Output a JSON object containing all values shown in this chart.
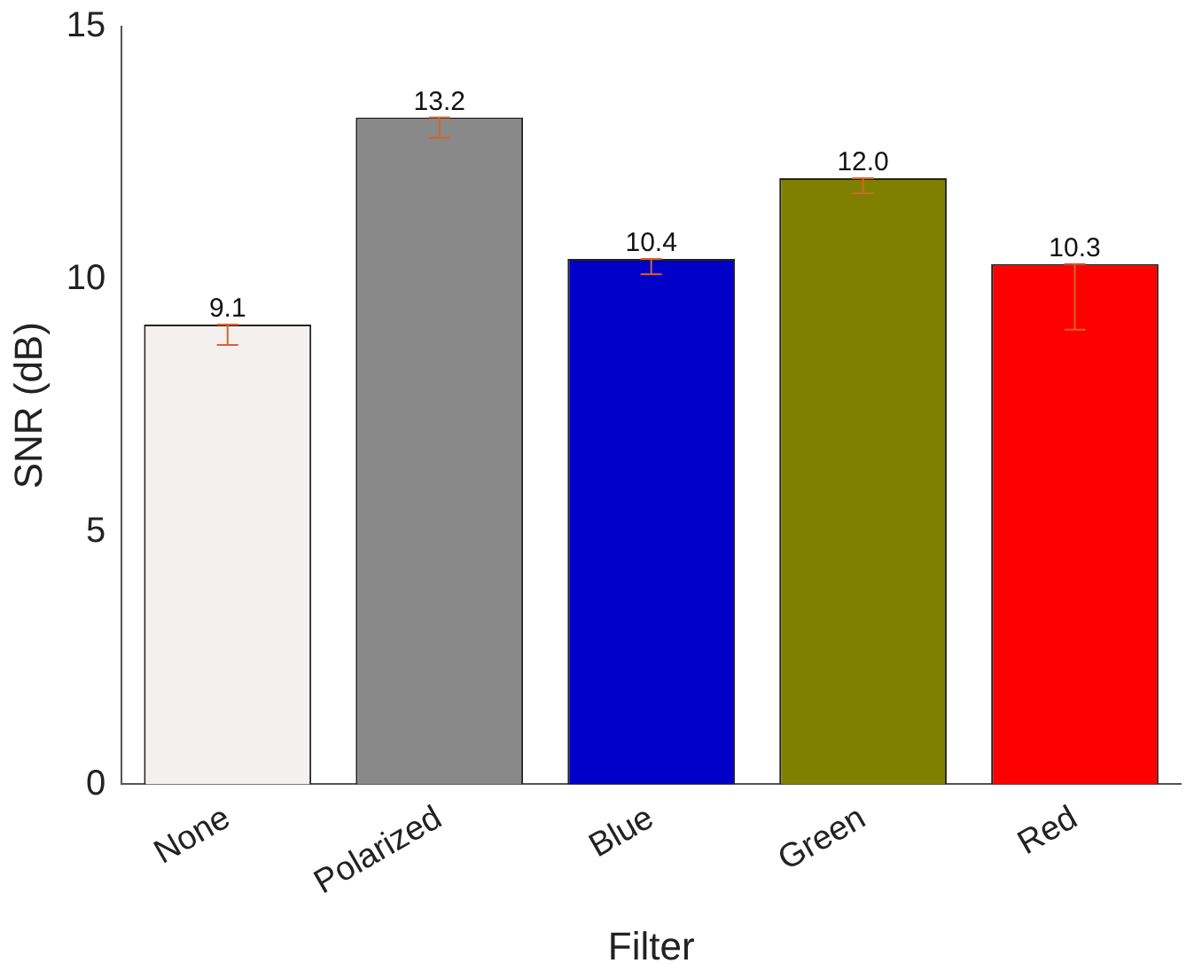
{
  "chart_data": {
    "type": "bar",
    "xlabel": "Filter",
    "ylabel": "SNR (dB)",
    "categories": [
      "None",
      "Polarized",
      "Blue",
      "Green",
      "Red"
    ],
    "values": [
      9.1,
      13.2,
      10.4,
      12.0,
      10.3
    ],
    "colors": [
      "#f5f0f0",
      "#898989",
      "#0000c8",
      "#808000",
      "#ff0000"
    ],
    "errors": [
      [
        8.7,
        9.1
      ],
      [
        12.8,
        13.2
      ],
      [
        10.1,
        10.4
      ],
      [
        11.7,
        12.0
      ],
      [
        9.0,
        10.3
      ]
    ],
    "value_labels": [
      "9.1",
      "13.2",
      "10.4",
      "12.0",
      "10.3"
    ],
    "ylim": [
      0,
      15
    ],
    "yticks": [
      0,
      5,
      10,
      15
    ],
    "grid": false,
    "legend": false
  }
}
